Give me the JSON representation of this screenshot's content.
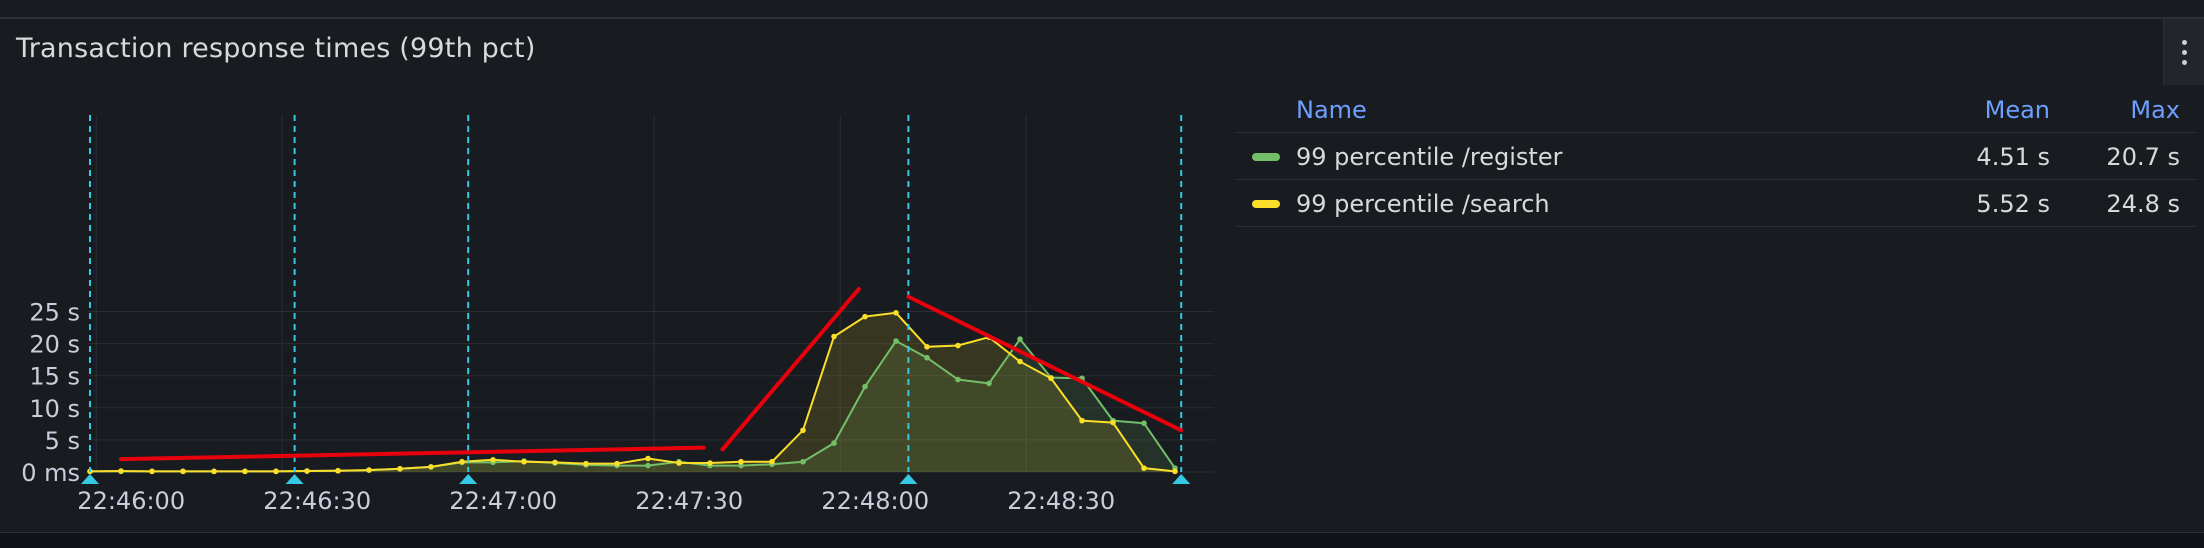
{
  "panel": {
    "title": "Transaction response times (99th pct)",
    "menu_icon": "kebab-menu-icon"
  },
  "legend": {
    "header": {
      "name": "Name",
      "mean": "Mean",
      "max": "Max"
    },
    "rows": [
      {
        "name": "99 percentile /register",
        "mean": "4.51 s",
        "max": "20.7 s",
        "color": "#73bf69"
      },
      {
        "name": "99 percentile /search",
        "mean": "5.52 s",
        "max": "24.8 s",
        "color": "#fade2a"
      }
    ]
  },
  "chart_data": {
    "type": "area",
    "x_start": "22:45:59",
    "x_step_seconds": 5,
    "x_ticks": [
      "22:46:00",
      "22:46:30",
      "22:47:00",
      "22:47:30",
      "22:48:00",
      "22:48:30"
    ],
    "y_ticks": [
      "0 ms",
      "5 s",
      "10 s",
      "15 s",
      "20 s",
      "25 s"
    ],
    "ylim": [
      0,
      28
    ],
    "series": [
      {
        "name": "99 percentile /register",
        "color": "#73bf69",
        "values": [
          0.1,
          0.1,
          0.1,
          0.1,
          0.1,
          0.1,
          0.1,
          0.15,
          0.2,
          0.3,
          0.5,
          0.8,
          1.5,
          1.5,
          1.7,
          1.4,
          1.1,
          1.0,
          1.0,
          1.6,
          1.0,
          1.0,
          1.2,
          1.6,
          4.5,
          13.3,
          20.4,
          17.8,
          14.4,
          13.8,
          20.7,
          14.7,
          14.6,
          8.0,
          7.6,
          0.6
        ]
      },
      {
        "name": "99 percentile /search",
        "color": "#fade2a",
        "values": [
          0.1,
          0.15,
          0.1,
          0.1,
          0.1,
          0.1,
          0.1,
          0.15,
          0.2,
          0.3,
          0.5,
          0.8,
          1.6,
          1.9,
          1.6,
          1.5,
          1.3,
          1.3,
          2.1,
          1.4,
          1.4,
          1.6,
          1.6,
          6.5,
          21.1,
          24.2,
          24.8,
          19.5,
          19.7,
          21.0,
          17.2,
          14.6,
          8.0,
          7.7,
          0.6,
          0.1
        ]
      }
    ],
    "annotations": {
      "vertical_marker_times": [
        "22:45:59",
        "22:46:32",
        "22:47:00",
        "22:48:11",
        "22:48:55"
      ],
      "marker_color": "#37c8e6",
      "trend_line_color": "#e8000d"
    }
  }
}
